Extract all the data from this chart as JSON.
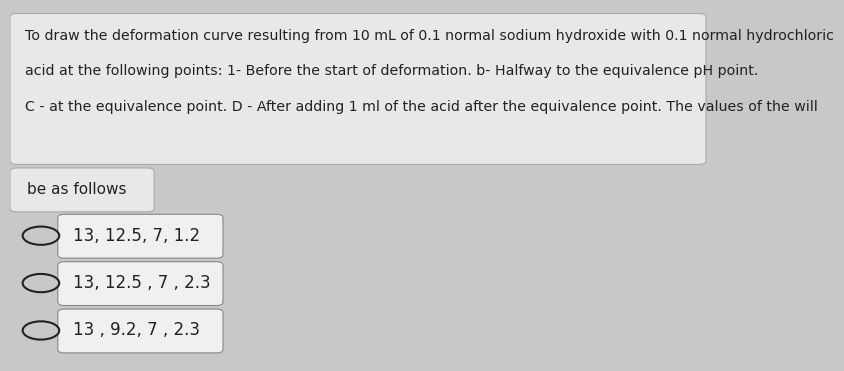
{
  "background_color": "#c8c8c8",
  "text_box_color": "#e8e8e8",
  "text_box_border": "#aaaaaa",
  "title_line1": "To draw the deformation curve resulting from 10 mL of 0.1 normal sodium hydroxide with 0.1 normal hydrochloric",
  "title_line2": "acid at the following points: 1- Before the start of deformation. b- Halfway to the equivalence pH point.",
  "title_line3": "C - at the equivalence point. D - After adding 1 ml of the acid after the equivalence point. The values of the will",
  "subtitle_text": "be as follows",
  "option1": "13, 12.5, 7, 1.2",
  "option2": "13, 12.5 , 7 , 2.3",
  "option3": "13 , 9.2, 7 , 2.3",
  "option_box_color": "#f0f0f0",
  "option_box_border": "#888888",
  "text_color": "#222222",
  "title_fontsize": 10.2,
  "option_fontsize": 12,
  "subtitle_fontsize": 11
}
